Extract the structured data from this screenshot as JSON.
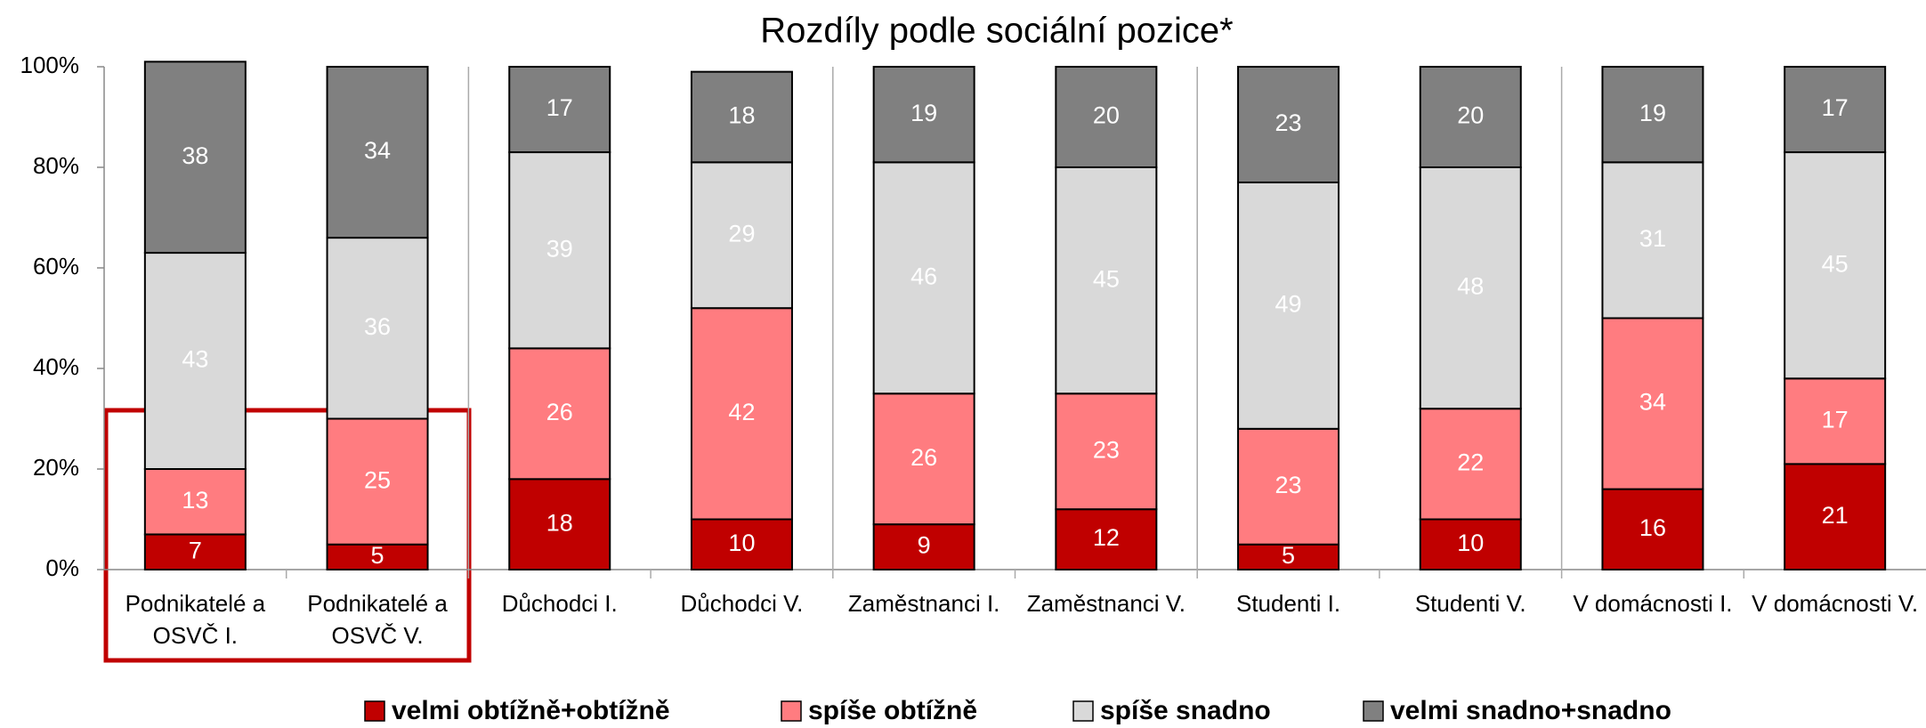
{
  "chart_data": {
    "type": "stacked_bar",
    "title": "Rozdíly podle sociální pozice*",
    "categories": [
      "Podnikatelé a OSVČ I.",
      "Podnikatelé a OSVČ V.",
      "Důchodci I.",
      "Důchodci V.",
      "Zaměstnanci I.",
      "Zaměstnanci V.",
      "Studenti I.",
      "Studenti V.",
      "V domácnosti I.",
      "V domácnosti V."
    ],
    "series": [
      {
        "name": "velmi obtížně+obtížně",
        "color": "#c00000",
        "values": [
          7,
          5,
          18,
          10,
          9,
          12,
          5,
          10,
          16,
          21
        ]
      },
      {
        "name": "spíše obtížně",
        "color": "#ff7c80",
        "values": [
          13,
          25,
          26,
          42,
          26,
          23,
          23,
          22,
          34,
          17
        ]
      },
      {
        "name": "spíše snadno",
        "color": "#d9d9d9",
        "values": [
          43,
          36,
          39,
          29,
          46,
          45,
          49,
          48,
          31,
          45
        ]
      },
      {
        "name": "velmi snadno+snadno",
        "color": "#808080",
        "values": [
          38,
          34,
          17,
          18,
          19,
          20,
          23,
          20,
          19,
          17
        ]
      }
    ],
    "ylim": [
      0,
      100
    ],
    "yticks": [
      {
        "value": 0,
        "label": "0%"
      },
      {
        "value": 20,
        "label": "20%"
      },
      {
        "value": 40,
        "label": "40%"
      },
      {
        "value": 60,
        "label": "60%"
      },
      {
        "value": 80,
        "label": "80%"
      },
      {
        "value": 100,
        "label": "100%"
      }
    ],
    "legend": "bottom"
  }
}
